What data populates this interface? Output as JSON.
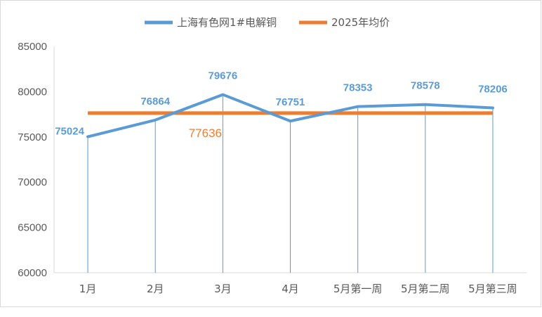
{
  "chart_data": {
    "type": "line",
    "categories": [
      "1月",
      "2月",
      "3月",
      "4月",
      "5月第一周",
      "5月第二周",
      "5月第三周"
    ],
    "series": [
      {
        "name": "上海有色网1#电解铜",
        "values": [
          75024,
          76864,
          79676,
          76751,
          78353,
          78578,
          78206
        ],
        "color": "#5b9bd5",
        "data_labels": [
          "75024",
          "76864",
          "79676",
          "76751",
          "78353",
          "78578",
          "78206"
        ]
      },
      {
        "name": "2025年均价",
        "values": [
          77636,
          77636,
          77636,
          77636,
          77636,
          77636,
          77636
        ],
        "color": "#ed7d31",
        "data_label": "77636"
      }
    ],
    "ylim": [
      60000,
      85000
    ],
    "yticks": [
      "60000",
      "65000",
      "70000",
      "75000",
      "80000",
      "85000"
    ],
    "ytick_values": [
      60000,
      65000,
      70000,
      75000,
      80000,
      85000
    ],
    "legend": "top",
    "grid": false,
    "drop_lines": true,
    "title": "",
    "xlabel": "",
    "ylabel": ""
  }
}
